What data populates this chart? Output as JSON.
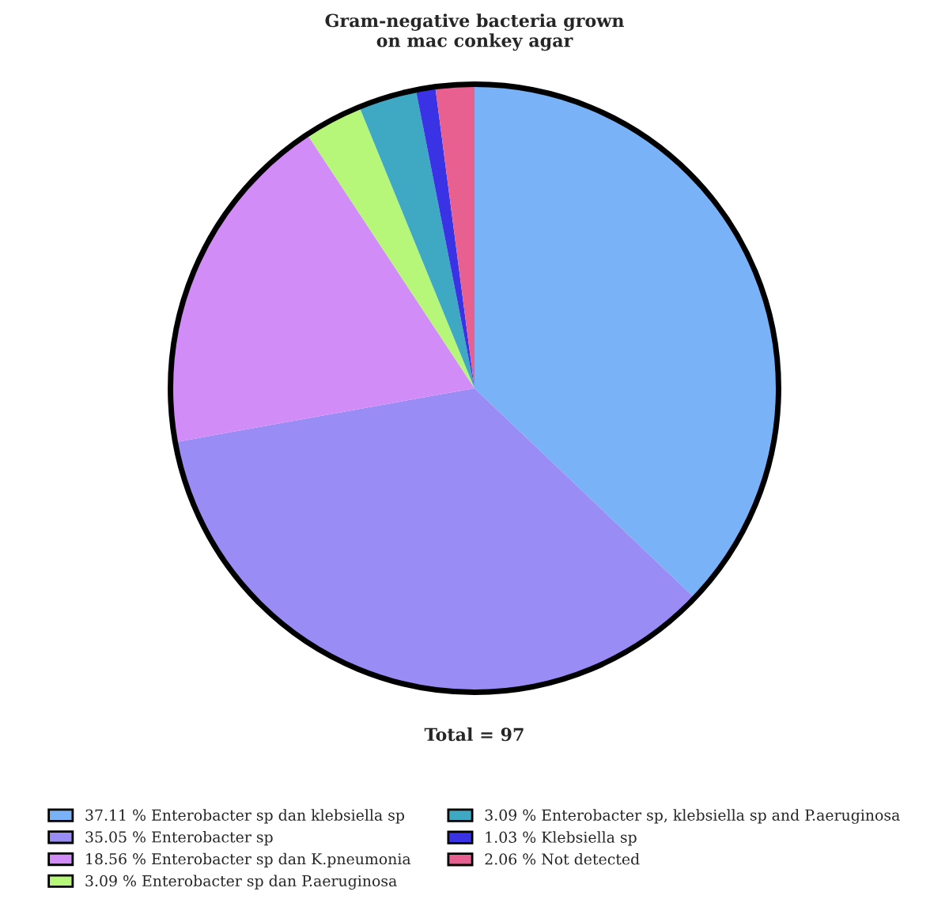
{
  "chart_data": {
    "type": "pie",
    "title": "Gram-negative bacteria grown\non mac conkey agar",
    "categories": [
      "37.11 % Enterobacter sp dan klebsiella sp",
      "35.05 % Enterobacter sp",
      "18.56 % Enterobacter sp dan K.pneumonia",
      "3.09 % Enterobacter sp dan P.aeruginosa",
      "3.09 % Enterobacter sp, klebsiella sp and P.aeruginosa",
      "1.03 % Klebsiella sp",
      "2.06 % Not detected"
    ],
    "values": [
      37.11,
      35.05,
      18.56,
      3.09,
      3.09,
      1.03,
      2.06
    ],
    "colors": [
      "#7ab2f7",
      "#9a8cf5",
      "#d28cf7",
      "#b6f77a",
      "#3fa9c4",
      "#3a33e6",
      "#e8608f"
    ],
    "annotations": [
      "Total = 97"
    ],
    "legend": "bottom"
  }
}
